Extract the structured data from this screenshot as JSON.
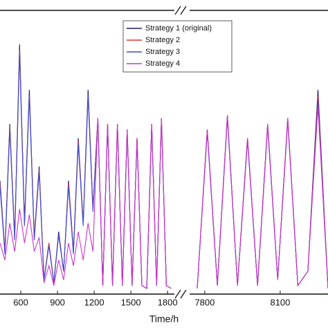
{
  "chart_data": {
    "type": "line",
    "x_label": "Time/h",
    "x": [
      430,
      470,
      510,
      550,
      590,
      630,
      670,
      710,
      750,
      790,
      830,
      870,
      910,
      950,
      990,
      1030,
      1070,
      1110,
      1150,
      1190,
      1230,
      1270,
      1310,
      1350,
      1390,
      1430,
      1470,
      1510,
      1550,
      1590,
      1630,
      1670,
      1710,
      1750,
      1790,
      1830,
      7770,
      7810,
      7850,
      7890,
      7930,
      7970,
      8010,
      8050,
      8090,
      8130,
      8170,
      8210,
      8250,
      8290
    ],
    "xlim": [
      430,
      8290
    ],
    "xbreak": [
      1850,
      7770
    ],
    "xticks": [
      600,
      900,
      1200,
      1500,
      1800,
      7800,
      8100
    ],
    "ylim": [
      0,
      100
    ],
    "series": [
      {
        "name": "Strategy 1 (original)",
        "color": "#1a1a6e",
        "values": [
          40,
          15,
          60,
          20,
          88,
          25,
          72,
          20,
          45,
          5,
          18,
          4,
          22,
          8,
          40,
          15,
          55,
          25,
          72,
          30,
          62,
          3,
          60,
          3,
          60,
          3,
          58,
          3,
          55,
          3,
          2,
          60,
          3,
          62,
          3,
          2,
          2,
          58,
          3,
          63,
          3,
          55,
          3,
          60,
          5,
          62,
          3,
          8,
          72,
          2
        ]
      },
      {
        "name": "Strategy 2",
        "color": "#e03030",
        "values": [
          39,
          15,
          59,
          20,
          86,
          25,
          70,
          20,
          44,
          5,
          18,
          4,
          21,
          8,
          39,
          15,
          54,
          25,
          70,
          30,
          62,
          3,
          60,
          3,
          60,
          3,
          58,
          3,
          55,
          3,
          2,
          60,
          3,
          62,
          3,
          2,
          2,
          58,
          3,
          63,
          3,
          55,
          3,
          60,
          5,
          62,
          3,
          8,
          70,
          2
        ]
      },
      {
        "name": "Strategy 3",
        "color": "#3a4fd8",
        "values": [
          38,
          14,
          58,
          19,
          85,
          24,
          70,
          19,
          43,
          5,
          17,
          4,
          21,
          8,
          38,
          14,
          53,
          24,
          70,
          29,
          61,
          3,
          59,
          3,
          59,
          3,
          57,
          3,
          54,
          3,
          2,
          59,
          3,
          61,
          3,
          2,
          2,
          57,
          3,
          62,
          3,
          54,
          3,
          59,
          5,
          61,
          3,
          8,
          68,
          2
        ]
      },
      {
        "name": "Strategy 4",
        "color": "#cc33cc",
        "values": [
          18,
          12,
          25,
          15,
          30,
          18,
          28,
          15,
          20,
          4,
          10,
          3,
          12,
          5,
          18,
          10,
          22,
          12,
          25,
          15,
          62,
          3,
          60,
          3,
          60,
          3,
          58,
          3,
          55,
          3,
          2,
          60,
          3,
          62,
          3,
          2,
          2,
          58,
          3,
          63,
          3,
          55,
          3,
          60,
          5,
          62,
          3,
          8,
          66,
          2
        ]
      }
    ]
  }
}
